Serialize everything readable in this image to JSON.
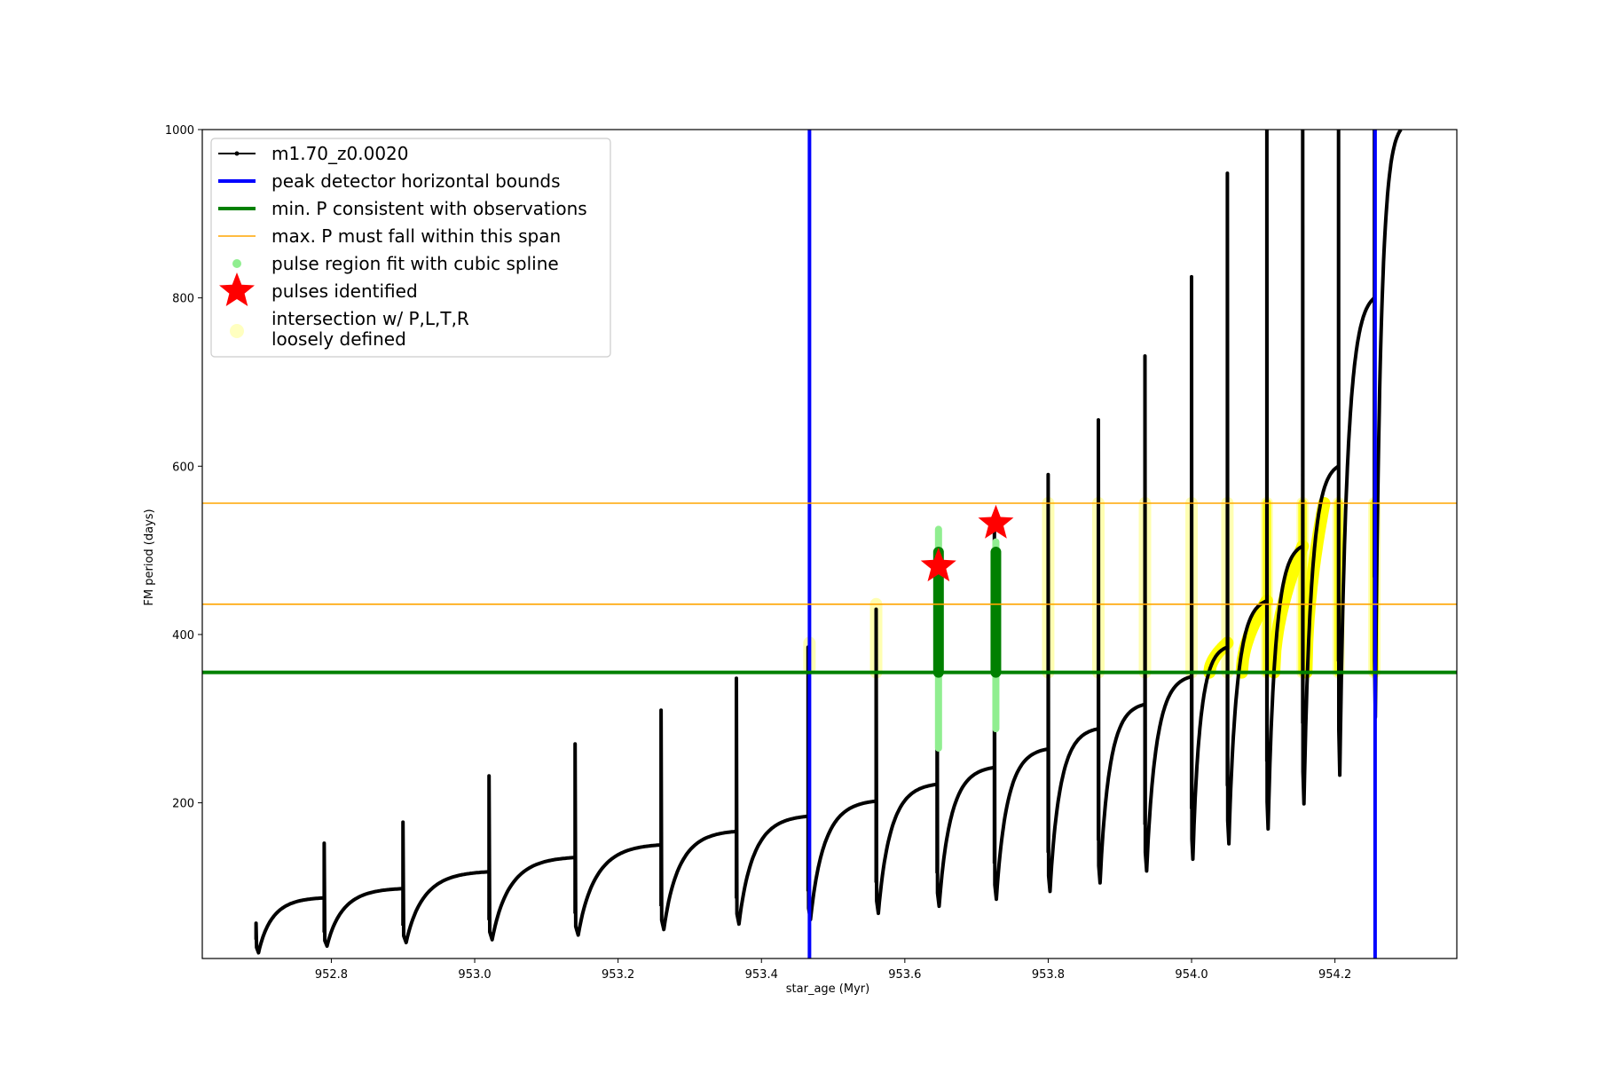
{
  "chart_data": {
    "type": "line",
    "title": "",
    "xlabel": "star_age (Myr)",
    "ylabel": "FM period (days)",
    "xlim": [
      952.62,
      954.37
    ],
    "ylim": [
      15,
      1000
    ],
    "x_ticks": [
      "952.8",
      "953.0",
      "953.2",
      "953.4",
      "953.6",
      "953.8",
      "954.0",
      "954.2"
    ],
    "y_ticks": [
      "200",
      "400",
      "600",
      "800",
      "1000"
    ],
    "grid": false,
    "legend_position": "top-left",
    "legend": [
      {
        "label": "m1.70_z0.0020",
        "kind": "line-marker",
        "color": "#000000"
      },
      {
        "label": "peak detector horizontal bounds",
        "kind": "line",
        "color": "#0000ff"
      },
      {
        "label": "min. P consistent with observations",
        "kind": "line",
        "color": "#008000"
      },
      {
        "label": "max. P must fall within this span",
        "kind": "thin-line",
        "color": "#ffa500"
      },
      {
        "label": "pulse region fit with cubic spline",
        "kind": "dot",
        "color": "#90ee90"
      },
      {
        "label": "pulses identified",
        "kind": "star",
        "color": "#ff0000"
      },
      {
        "label": "intersection w/ P,L,T,R",
        "label2": "loosely defined",
        "kind": "circle",
        "color": "#ffffc0"
      }
    ],
    "series": [
      {
        "name": "m1.70_z0.0020",
        "color": "#000000",
        "segments": [
          {
            "start": 952.695,
            "end": 952.79,
            "p0": 25,
            "p1": 87,
            "spike": 57
          },
          {
            "start": 952.79,
            "end": 952.9,
            "p0": 33,
            "p1": 98,
            "spike": 152
          },
          {
            "start": 952.9,
            "end": 953.02,
            "p0": 38,
            "p1": 118,
            "spike": 177
          },
          {
            "start": 953.02,
            "end": 953.14,
            "p0": 42,
            "p1": 135,
            "spike": 232
          },
          {
            "start": 953.14,
            "end": 953.26,
            "p0": 48,
            "p1": 150,
            "spike": 270
          },
          {
            "start": 953.26,
            "end": 953.365,
            "p0": 55,
            "p1": 166,
            "spike": 310
          },
          {
            "start": 953.365,
            "end": 953.465,
            "p0": 62,
            "p1": 184,
            "spike": 348
          },
          {
            "start": 953.465,
            "end": 953.56,
            "p0": 68,
            "p1": 202,
            "spike": 385
          },
          {
            "start": 953.56,
            "end": 953.645,
            "p0": 76,
            "p1": 222,
            "spike": 430
          },
          {
            "start": 953.645,
            "end": 953.725,
            "p0": 85,
            "p1": 242,
            "spike": 500
          },
          {
            "start": 953.725,
            "end": 953.8,
            "p0": 94,
            "p1": 264,
            "spike": 530
          },
          {
            "start": 953.8,
            "end": 953.87,
            "p0": 104,
            "p1": 288,
            "spike": 590
          },
          {
            "start": 953.87,
            "end": 953.935,
            "p0": 115,
            "p1": 317,
            "spike": 655
          },
          {
            "start": 953.935,
            "end": 954.0,
            "p0": 130,
            "p1": 350,
            "spike": 731
          },
          {
            "start": 954.0,
            "end": 954.05,
            "p0": 145,
            "p1": 385,
            "spike": 825
          },
          {
            "start": 954.05,
            "end": 954.105,
            "p0": 165,
            "p1": 440,
            "spike": 948
          },
          {
            "start": 954.105,
            "end": 954.155,
            "p0": 185,
            "p1": 505,
            "spike": 1000
          },
          {
            "start": 954.155,
            "end": 954.205,
            "p0": 218,
            "p1": 600,
            "spike": 1000
          },
          {
            "start": 954.205,
            "end": 954.255,
            "p0": 260,
            "p1": 800,
            "spike": 1000
          },
          {
            "start": 954.255,
            "end": 954.292,
            "p0": 335,
            "p1": 1000,
            "spike": 1000
          }
        ]
      }
    ],
    "vertical_lines": [
      {
        "name": "peak detector horizontal bounds",
        "x": 953.467,
        "color": "#0000ff"
      },
      {
        "name": "peak detector horizontal bounds",
        "x": 954.256,
        "color": "#0000ff"
      }
    ],
    "horizontal_lines": [
      {
        "name": "min. P consistent with observations",
        "y": 355,
        "color": "#008000"
      },
      {
        "name": "max. P must fall within this span",
        "y": 556,
        "color": "#ffa500"
      },
      {
        "name": "max. P must fall within this span",
        "y": 436,
        "color": "#ffa500"
      }
    ],
    "pulse_fit_regions": [
      {
        "x": 953.647,
        "y_min": 265,
        "y_max": 525,
        "color": "#90ee90"
      },
      {
        "x": 953.727,
        "y_min": 288,
        "y_max": 510,
        "color": "#90ee90"
      }
    ],
    "pulse_fit_core": [
      {
        "x": 953.647,
        "y_min": 355,
        "y_max": 498
      },
      {
        "x": 953.727,
        "y_min": 355,
        "y_max": 498
      }
    ],
    "pulses_identified": [
      {
        "x": 953.647,
        "y": 481
      },
      {
        "x": 953.727,
        "y": 532
      }
    ],
    "loose_intersections": [
      {
        "x": 953.467,
        "y_min": 360,
        "y_max": 390
      },
      {
        "x": 953.56,
        "y_min": 355,
        "y_max": 436
      },
      {
        "x": 953.8,
        "y_min": 355,
        "y_max": 556
      },
      {
        "x": 953.87,
        "y_min": 355,
        "y_max": 556
      },
      {
        "x": 953.935,
        "y_min": 355,
        "y_max": 556
      },
      {
        "x": 954.0,
        "y_min": 355,
        "y_max": 556
      },
      {
        "x": 954.05,
        "y_min": 355,
        "y_max": 556
      },
      {
        "x": 954.105,
        "y_min": 355,
        "y_max": 556
      },
      {
        "x": 954.155,
        "y_min": 355,
        "y_max": 556
      },
      {
        "x": 954.205,
        "y_min": 355,
        "y_max": 556
      },
      {
        "x": 954.255,
        "y_min": 355,
        "y_max": 556
      }
    ],
    "intersection_tracks": [
      {
        "x_start": 954.025,
        "x_end": 954.05,
        "y0": 355,
        "y1": 390
      },
      {
        "x_start": 954.07,
        "x_end": 954.105,
        "y0": 355,
        "y1": 440
      },
      {
        "x_start": 954.115,
        "x_end": 954.155,
        "y0": 355,
        "y1": 505
      },
      {
        "x_start": 954.16,
        "x_end": 954.185,
        "y0": 355,
        "y1": 556
      }
    ]
  }
}
